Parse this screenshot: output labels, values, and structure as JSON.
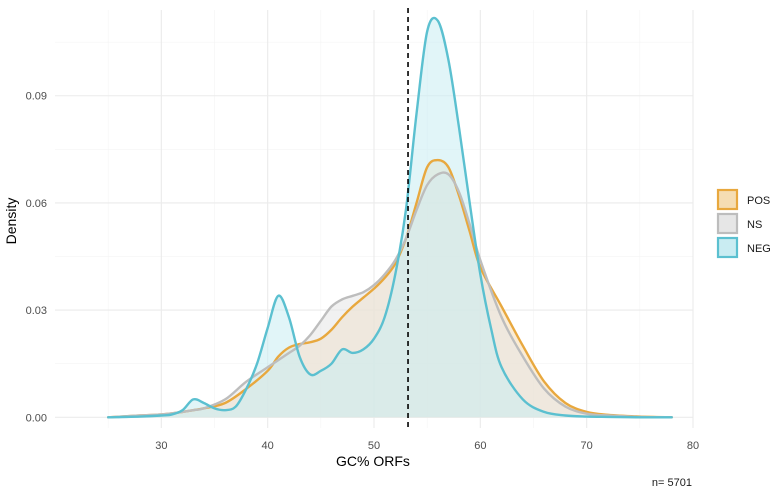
{
  "chart_data": {
    "type": "area",
    "title": "",
    "xlabel": "GC% ORFs",
    "ylabel": "Density",
    "xlim": [
      20,
      80
    ],
    "ylim": [
      -0.003,
      0.114
    ],
    "x_ticks": [
      30,
      40,
      50,
      60,
      70,
      80
    ],
    "x_tick_labels": [
      "30",
      "40",
      "50",
      "60",
      "70",
      "80"
    ],
    "y_ticks": [
      0.0,
      0.03,
      0.06,
      0.09
    ],
    "y_tick_labels": [
      "0.00",
      "0.03",
      "0.06",
      "0.09"
    ],
    "grid": true,
    "legend_position": "right",
    "caption": "n= 5701",
    "reference_line": {
      "x": 53.2,
      "style": "dashed",
      "color": "#000000"
    },
    "series": [
      {
        "name": "POS",
        "color": "#E8A83E",
        "fill": "#F5DDB3",
        "x": [
          25,
          28,
          30,
          32,
          33,
          34,
          36,
          38,
          40,
          41,
          42,
          43,
          44,
          45,
          46,
          47,
          48,
          49,
          50,
          51,
          52,
          53,
          54,
          55,
          56,
          57,
          58,
          59,
          60,
          62,
          64,
          66,
          68,
          70,
          72,
          75,
          78
        ],
        "values": [
          0.0,
          0.0005,
          0.0008,
          0.0015,
          0.002,
          0.0025,
          0.004,
          0.008,
          0.013,
          0.017,
          0.0195,
          0.0205,
          0.021,
          0.022,
          0.0245,
          0.028,
          0.031,
          0.0335,
          0.036,
          0.039,
          0.043,
          0.05,
          0.06,
          0.07,
          0.072,
          0.07,
          0.062,
          0.052,
          0.042,
          0.031,
          0.02,
          0.01,
          0.004,
          0.0015,
          0.0007,
          0.0002,
          0.0
        ]
      },
      {
        "name": "NS",
        "color": "#BDBDBD",
        "fill": "#E6E6E6",
        "x": [
          25,
          28,
          30,
          32,
          33,
          34,
          36,
          38,
          40,
          41,
          42,
          43,
          44,
          45,
          46,
          47,
          48,
          49,
          50,
          51,
          52,
          53,
          54,
          55,
          56,
          57,
          58,
          59,
          60,
          62,
          64,
          66,
          68,
          70,
          72,
          75,
          78
        ],
        "values": [
          0.0,
          0.0005,
          0.0008,
          0.0015,
          0.002,
          0.0025,
          0.005,
          0.01,
          0.014,
          0.016,
          0.018,
          0.02,
          0.023,
          0.027,
          0.031,
          0.033,
          0.034,
          0.035,
          0.037,
          0.04,
          0.044,
          0.05,
          0.058,
          0.065,
          0.068,
          0.068,
          0.063,
          0.054,
          0.044,
          0.028,
          0.017,
          0.008,
          0.003,
          0.001,
          0.0005,
          0.0001,
          0.0
        ]
      },
      {
        "name": "NEG",
        "color": "#5BC0D0",
        "fill": "#C9ECF2",
        "x": [
          25,
          28,
          30,
          31,
          32,
          33,
          34,
          35,
          36,
          37,
          38,
          39,
          40,
          41,
          42,
          43,
          44,
          45,
          46,
          47,
          48,
          49,
          50,
          51,
          52,
          53,
          54,
          55,
          56,
          57,
          58,
          59,
          60,
          61,
          62,
          64,
          66,
          68,
          70,
          72,
          75,
          78
        ],
        "values": [
          0.0,
          0.0002,
          0.0005,
          0.0008,
          0.002,
          0.005,
          0.004,
          0.0025,
          0.002,
          0.003,
          0.008,
          0.015,
          0.025,
          0.034,
          0.028,
          0.017,
          0.012,
          0.013,
          0.015,
          0.019,
          0.018,
          0.019,
          0.022,
          0.028,
          0.04,
          0.058,
          0.085,
          0.108,
          0.111,
          0.1,
          0.081,
          0.06,
          0.04,
          0.025,
          0.014,
          0.005,
          0.0015,
          0.0005,
          0.0002,
          0.0001,
          0.0,
          0.0
        ]
      }
    ]
  }
}
